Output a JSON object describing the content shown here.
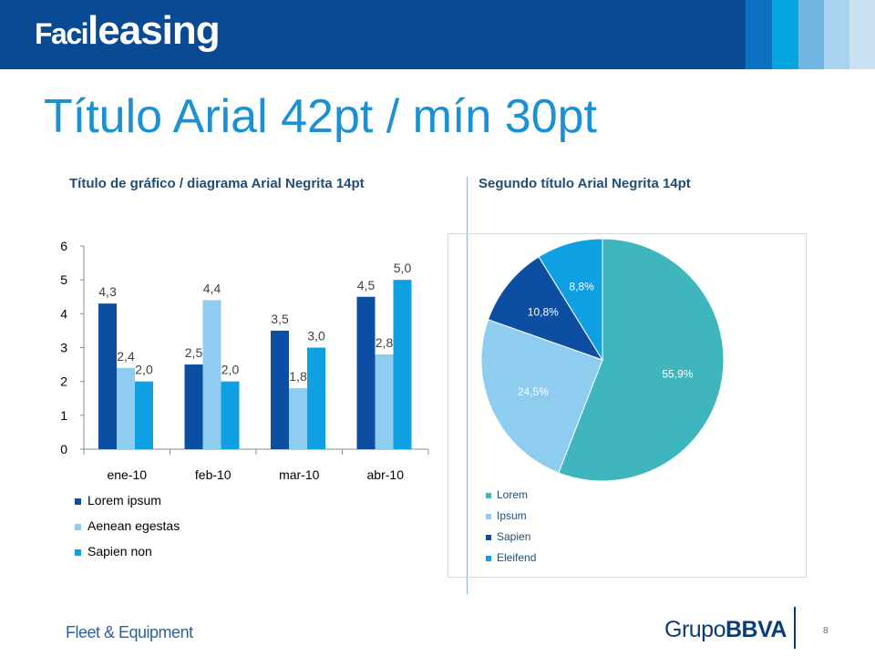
{
  "header": {
    "logo_part1": "Faci",
    "logo_part2": "leasing",
    "colors": {
      "bar": "#0a4a93",
      "stripes": [
        "#0a5ba8",
        "#0b72c4",
        "#04a6e0",
        "#6fb6e2",
        "#a9d2ef",
        "#c9e1f1"
      ]
    }
  },
  "slide_title": "Título Arial 42pt / mín 30pt",
  "left_chart_title": "Título de gráfico / diagrama Arial Negrita 14pt",
  "right_chart_title": "Segundo título Arial Negrita 14pt",
  "legends": {
    "bar": [
      "Lorem ipsum",
      "Aenean egestas",
      "Sapien non"
    ],
    "pie": [
      "Lorem",
      "Ipsum",
      "Sapien",
      "Eleifend"
    ]
  },
  "footer": {
    "left": "Fleet & Equipment",
    "brand_part1": "Grupo",
    "brand_part2": "BBVA",
    "page_number": "8"
  },
  "chart_data": [
    {
      "type": "bar",
      "title": "Título de gráfico / diagrama Arial Negrita 14pt",
      "categories": [
        "ene-10",
        "feb-10",
        "mar-10",
        "abr-10"
      ],
      "series": [
        {
          "name": "Lorem ipsum",
          "values": [
            4.3,
            2.5,
            3.5,
            4.5
          ],
          "labels": [
            "4,3",
            "2,5",
            "3,5",
            "4,5"
          ],
          "color": "#0c4ea2"
        },
        {
          "name": "Aenean egestas",
          "values": [
            2.4,
            4.4,
            1.8,
            2.8
          ],
          "labels": [
            "2,4",
            "4,4",
            "1,8",
            "2,8"
          ],
          "color": "#8ecdf0"
        },
        {
          "name": "Sapien non",
          "values": [
            2.0,
            2.0,
            3.0,
            5.0
          ],
          "labels": [
            "2,0",
            "2,0",
            "3,0",
            "5,0"
          ],
          "color": "#0ea0e2"
        }
      ],
      "ylim": [
        0,
        6
      ],
      "yticks": [
        "0",
        "1",
        "2",
        "3",
        "4",
        "5",
        "6"
      ],
      "grid": false,
      "legend": "bottom"
    },
    {
      "type": "pie",
      "title": "Segundo título Arial Negrita 14pt",
      "labels": [
        "Lorem",
        "Ipsum",
        "Sapien",
        "Eleifend"
      ],
      "values": [
        55.9,
        24.5,
        10.8,
        8.8
      ],
      "value_labels": [
        "55,9%",
        "24,5%",
        "10,8%",
        "8,8%"
      ],
      "colors": [
        "#3fb6bd",
        "#8ecdf0",
        "#0c4ea2",
        "#0ea0e2"
      ],
      "legend": "bottom-left"
    }
  ]
}
